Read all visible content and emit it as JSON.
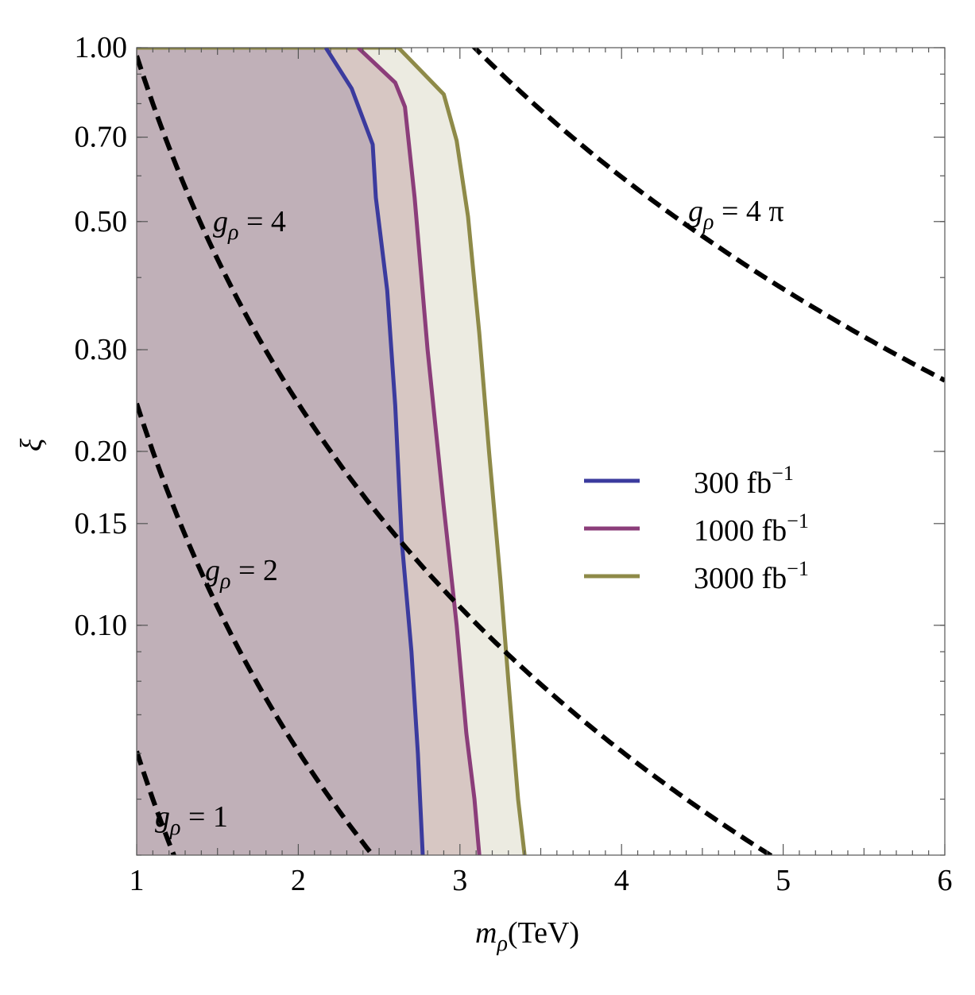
{
  "chart_data": {
    "type": "area",
    "x_axis": {
      "label_var": "m",
      "label_sub": "ρ",
      "label_unit": "(TeV)",
      "range": [
        1,
        6
      ],
      "ticks": [
        "1",
        "2",
        "3",
        "4",
        "5",
        "6"
      ],
      "scale": "linear"
    },
    "y_axis": {
      "label": "ξ",
      "range": [
        0.04,
        1.0
      ],
      "scale": "log",
      "ticks": [
        {
          "value": 1.0,
          "label": "1.00"
        },
        {
          "value": 0.7,
          "label": "0.70"
        },
        {
          "value": 0.5,
          "label": "0.50"
        },
        {
          "value": 0.3,
          "label": "0.30"
        },
        {
          "value": 0.2,
          "label": "0.20"
        },
        {
          "value": 0.15,
          "label": "0.15"
        },
        {
          "value": 0.1,
          "label": "0.10"
        }
      ]
    },
    "series": [
      {
        "name": "300 fb",
        "sup": "−1",
        "color": "#3b3b9e",
        "fill": "#c0b0b8",
        "points": [
          [
            2.17,
            1.0
          ],
          [
            2.33,
            0.85
          ],
          [
            2.46,
            0.68
          ],
          [
            2.48,
            0.55
          ],
          [
            2.55,
            0.38
          ],
          [
            2.6,
            0.24
          ],
          [
            2.64,
            0.14
          ],
          [
            2.7,
            0.09
          ],
          [
            2.74,
            0.06
          ],
          [
            2.77,
            0.04
          ]
        ]
      },
      {
        "name": "1000 fb",
        "sup": "−1",
        "color": "#8b3d7a",
        "fill": "#d7c7c3",
        "points": [
          [
            2.37,
            1.0
          ],
          [
            2.6,
            0.87
          ],
          [
            2.66,
            0.79
          ],
          [
            2.72,
            0.55
          ],
          [
            2.8,
            0.3
          ],
          [
            2.9,
            0.16
          ],
          [
            2.98,
            0.1
          ],
          [
            3.04,
            0.065
          ],
          [
            3.09,
            0.05
          ],
          [
            3.12,
            0.04
          ]
        ]
      },
      {
        "name": "3000 fb",
        "sup": "−1",
        "color": "#8e8a48",
        "fill": "#ecebe1",
        "points": [
          [
            1.0,
            1.0
          ],
          [
            2.62,
            1.0
          ],
          [
            2.9,
            0.83
          ],
          [
            2.98,
            0.69
          ],
          [
            3.05,
            0.51
          ],
          [
            3.12,
            0.32
          ],
          [
            3.18,
            0.2
          ],
          [
            3.25,
            0.12
          ],
          [
            3.3,
            0.08
          ],
          [
            3.36,
            0.05
          ],
          [
            3.4,
            0.04
          ]
        ]
      }
    ],
    "dashed_curves": [
      {
        "g": 1,
        "label_var": "g",
        "label_sub": "ρ",
        "label_rest": " = 1"
      },
      {
        "g": 2,
        "label_var": "g",
        "label_sub": "ρ",
        "label_rest": " = 2"
      },
      {
        "g": 4,
        "label_var": "g",
        "label_sub": "ρ",
        "label_rest": " = 4"
      },
      {
        "g": 12.566,
        "label_var": "g",
        "label_sub": "ρ",
        "label_rest": " = 4 π"
      }
    ],
    "relation": "xi = (g * v / m)^2, v = 0.246 TeV",
    "legend_position": "center-right"
  }
}
